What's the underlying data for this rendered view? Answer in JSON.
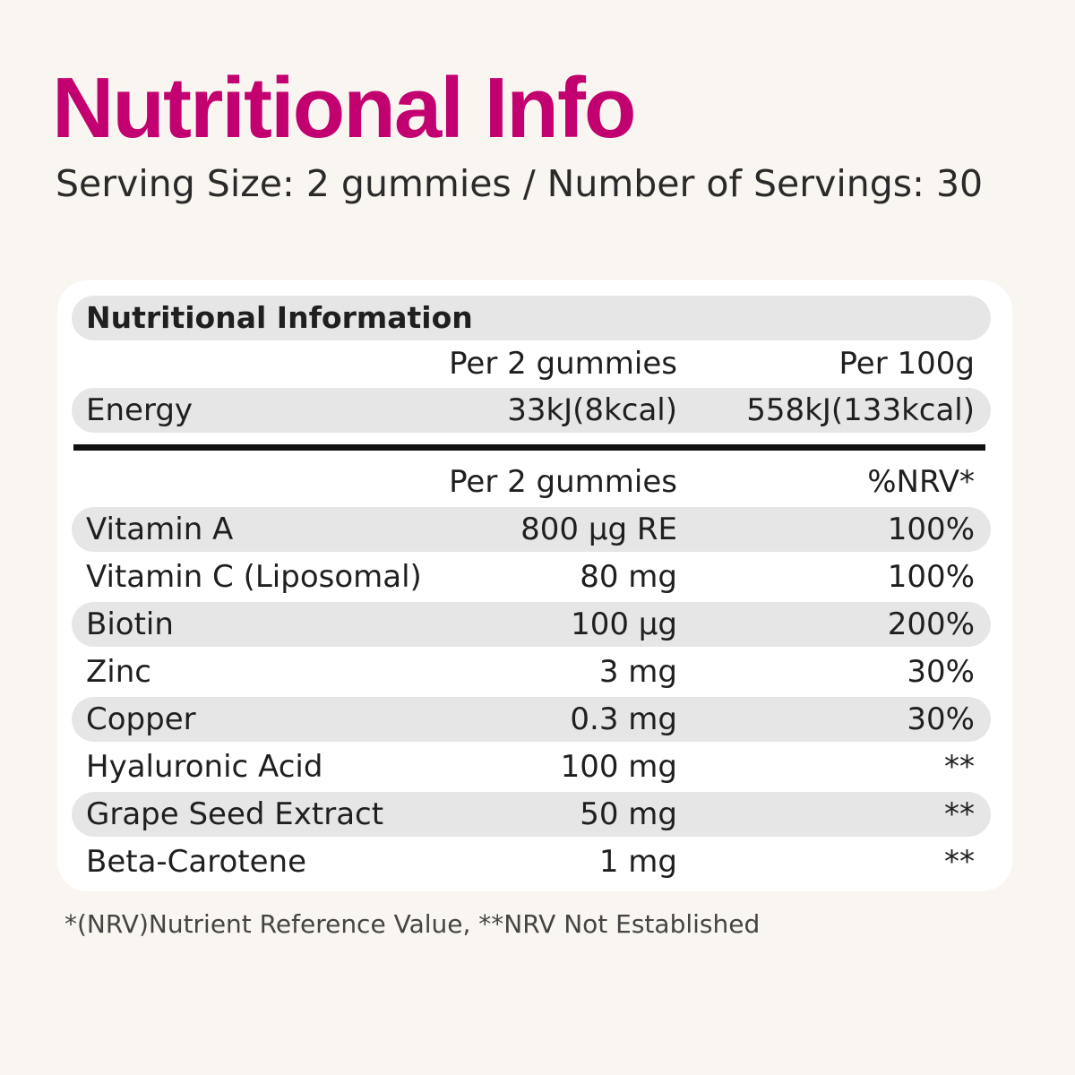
{
  "header": {
    "title": "Nutritional Info",
    "subtitle": "Serving Size: 2 gummies  / Number of Servings: 30"
  },
  "table": {
    "heading": "Nutritional Information",
    "energy_header": {
      "col_mid": "Per 2 gummies",
      "col_right": "Per 100g"
    },
    "energy": {
      "name": "Energy",
      "per_serving": "33kJ(8kcal)",
      "per_100g": "558kJ(133kcal)"
    },
    "nutrients_header": {
      "col_mid": "Per 2 gummies",
      "col_right": "%NRV*"
    },
    "rows": [
      {
        "name": "Vitamin A",
        "amount": "800 µg RE",
        "nrv": "100%"
      },
      {
        "name": "Vitamin C (Liposomal)",
        "amount": "80 mg",
        "nrv": "100%"
      },
      {
        "name": "Biotin",
        "amount": "100  µg",
        "nrv": "200%"
      },
      {
        "name": "Zinc",
        "amount": "3 mg",
        "nrv": "30%"
      },
      {
        "name": "Copper",
        "amount": "0.3 mg",
        "nrv": "30%"
      },
      {
        "name": "Hyaluronic Acid",
        "amount": "100 mg",
        "nrv": "**"
      },
      {
        "name": "Grape Seed Extract",
        "amount": "50 mg",
        "nrv": "**"
      },
      {
        "name": "Beta-Carotene",
        "amount": "1 mg",
        "nrv": "**"
      }
    ]
  },
  "footnote": "*(NRV)Nutrient Reference Value, **NRV Not Established",
  "colors": {
    "title": "#c2006f",
    "background": "#f9f6f1",
    "card": "#ffffff",
    "row_shade": "#e7e6e7"
  }
}
